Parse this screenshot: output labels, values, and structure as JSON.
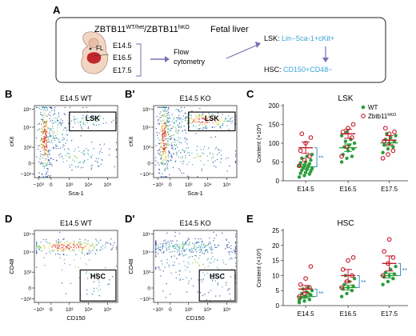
{
  "panel_letters": {
    "A": "A",
    "B": "B",
    "B2": "B'",
    "C": "C",
    "D": "D",
    "D2": "D'",
    "E": "E"
  },
  "schematic": {
    "genotype_prefix": "ZBTB11",
    "genotype_sup1": "WT/het",
    "genotype_mid": "/ZBTB11",
    "genotype_sup2": "hKO",
    "tissue": "Fetal liver",
    "organ_label": "FL",
    "stages": [
      "E14.5",
      "E16.5",
      "E17.5"
    ],
    "method_line1": "Flow",
    "method_line2": "cytometry",
    "lsk_prefix": "LSK: ",
    "lsk_markers": "Lin−Sca-1+cKit+",
    "hsc_prefix": "HSC: ",
    "hsc_markers": "CD150+CD48−",
    "colors": {
      "accent": "#3aa6d6",
      "arrow": "#7b6fb5",
      "liver": "#c0262a",
      "embryo": "#f2d6c4"
    }
  },
  "flow_plots": [
    {
      "id": "B",
      "title": "E14.5 WT",
      "gate": "LSK",
      "xlabel": "Sca-1",
      "ylabel": "cKit",
      "xticks": [
        "−10³",
        "0",
        "10³",
        "10⁴",
        "10⁵"
      ],
      "yticks": [
        "10⁵",
        "10⁴",
        "10³",
        "0",
        "−10³"
      ]
    },
    {
      "id": "B2",
      "title": "E14.5 KO",
      "gate": "LSK",
      "xlabel": "Sca-1",
      "ylabel": "cKit",
      "xticks": [
        "−10³",
        "0",
        "10³",
        "10⁴",
        "10⁵"
      ],
      "yticks": [
        "10⁵",
        "10⁴",
        "10³",
        "0",
        "−10³"
      ]
    },
    {
      "id": "D",
      "title": "E14.5 WT",
      "gate": "HSC",
      "xlabel": "CD150",
      "ylabel": "CD48",
      "xticks": [
        "−10³",
        "0",
        "10³",
        "10⁴",
        "10⁵"
      ],
      "yticks": [
        "10⁵",
        "10⁴",
        "10³",
        "0",
        "−10³"
      ]
    },
    {
      "id": "D2",
      "title": "E14.5 KO",
      "gate": "HSC",
      "xlabel": "CD150",
      "ylabel": "CD48",
      "xticks": [
        "−10³",
        "0",
        "10³",
        "10⁴",
        "10⁵"
      ],
      "yticks": [
        "10⁵",
        "10⁴",
        "10³",
        "0",
        "−10³"
      ]
    }
  ],
  "chart_data": [
    {
      "type": "scatter",
      "title": "LSK",
      "ylabel": "Content (×10³)",
      "categories": [
        "E14.5",
        "E16.5",
        "E17.5"
      ],
      "ylim": [
        0,
        200
      ],
      "yticks": [
        0,
        50,
        100,
        150,
        200
      ],
      "legend": {
        "placement": "top-right",
        "entries": [
          "WT",
          "Zbtb11"
        ],
        "sup": "hKO"
      },
      "significance": [
        "**",
        "",
        ""
      ],
      "series": [
        {
          "name": "WT",
          "color": "#2a9d3a",
          "means": [
            37,
            88,
            101
          ],
          "sems": [
            6,
            10,
            8
          ],
          "points": [
            [
              10,
              14,
              18,
              20,
              22,
              25,
              28,
              30,
              32,
              35,
              38,
              40,
              42,
              45,
              48,
              50,
              55,
              60,
              65,
              70
            ],
            [
              50,
              60,
              65,
              70,
              80,
              85,
              90,
              95,
              100,
              105,
              110,
              120,
              130
            ],
            [
              75,
              85,
              90,
              95,
              100,
              105,
              110,
              115,
              120,
              125
            ]
          ]
        },
        {
          "name": "Zbtb11",
          "color": "#c21a2a",
          "means": [
            88,
            125,
            108
          ],
          "sems": [
            15,
            12,
            12
          ],
          "points": [
            [
              40,
              55,
              65,
              80,
              100,
              115,
              125
            ],
            [
              65,
              90,
              115,
              130,
              140,
              150
            ],
            [
              60,
              70,
              80,
              105,
              125,
              130,
              140
            ]
          ]
        }
      ]
    },
    {
      "type": "scatter",
      "title": "HSC",
      "ylabel": "Content (×10³)",
      "categories": [
        "E14.5",
        "E16.5",
        "E17.5"
      ],
      "ylim": [
        0,
        25
      ],
      "yticks": [
        0,
        5,
        10,
        15,
        20,
        25
      ],
      "significance": [
        "**",
        "**",
        "**"
      ],
      "series": [
        {
          "name": "WT",
          "color": "#2a9d3a",
          "means": [
            3,
            6,
            10
          ],
          "sems": [
            0.5,
            0.8,
            0.8
          ],
          "points": [
            [
              1,
              1.5,
              2,
              2.5,
              3,
              3.5,
              4,
              4.5,
              5,
              5.5,
              6,
              1.8,
              2.8,
              3.8
            ],
            [
              3,
              4,
              5,
              5.5,
              6,
              6.5,
              7,
              8,
              9,
              10
            ],
            [
              7,
              8,
              9,
              9.5,
              10,
              10.5,
              11,
              12,
              13
            ]
          ]
        },
        {
          "name": "Zbtb11",
          "color": "#c21a2a",
          "means": [
            5.5,
            10,
            14
          ],
          "sems": [
            1.2,
            2,
            2.5
          ],
          "points": [
            [
              3,
              4,
              6,
              7,
              9,
              13
            ],
            [
              6,
              8,
              10,
              12,
              15,
              16
            ],
            [
              10,
              14,
              16,
              18,
              22
            ]
          ]
        }
      ]
    }
  ]
}
